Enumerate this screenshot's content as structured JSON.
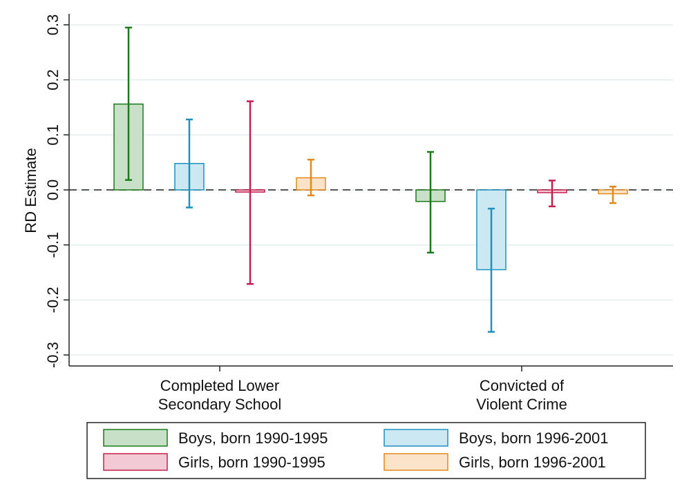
{
  "chart_data": {
    "type": "bar",
    "title": "",
    "xlabel": "",
    "ylabel": "RD Estimate",
    "ylim": [
      -0.32,
      0.32
    ],
    "yticks": [
      -0.3,
      -0.2,
      -0.1,
      0.0,
      0.1,
      0.2,
      0.3
    ],
    "ytick_labels": [
      "-0.3",
      "-0.2",
      "-0.1",
      "0.0",
      "0.1",
      "0.2",
      "0.3"
    ],
    "grid": true,
    "reference_line": 0.0,
    "categories": [
      {
        "lines": [
          "Completed Lower",
          "Secondary School"
        ]
      },
      {
        "lines": [
          "Convicted of",
          "Violent Crime"
        ]
      }
    ],
    "series": [
      {
        "name": "Boys, born 1990-1995",
        "edge": "#1a7a1a",
        "fill": "#c8dfc8",
        "values": [
          0.156,
          -0.021
        ],
        "ci_low": [
          0.018,
          -0.114
        ],
        "ci_high": [
          0.295,
          0.069
        ]
      },
      {
        "name": "Boys, born 1996-2001",
        "edge": "#1c92c0",
        "fill": "#cce8f2",
        "values": [
          0.048,
          -0.145
        ],
        "ci_low": [
          -0.032,
          -0.258
        ],
        "ci_high": [
          0.128,
          -0.034
        ]
      },
      {
        "name": "Girls, born 1990-1995",
        "edge": "#c41f4f",
        "fill": "#f2cad5",
        "values": [
          -0.004,
          -0.005
        ],
        "ci_low": [
          -0.171,
          -0.03
        ],
        "ci_high": [
          0.161,
          0.017
        ]
      },
      {
        "name": "Girls, born 1996-2001",
        "edge": "#e08a1a",
        "fill": "#fbe3c9",
        "values": [
          0.022,
          -0.007
        ],
        "ci_low": [
          -0.01,
          -0.024
        ],
        "ci_high": [
          0.055,
          0.006
        ]
      }
    ],
    "legend": {
      "position": "bottom",
      "columns": 2
    }
  }
}
